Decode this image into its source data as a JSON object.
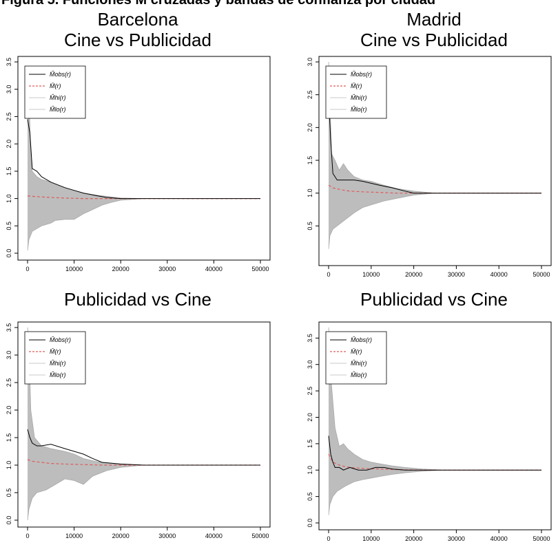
{
  "figure_caption": "Figura 5. Funciones M cruzadas y bandas de confianza por ciudad",
  "legend_labels": [
    "M̂obs(r)",
    "M̄(r)",
    "M̂hi(r)",
    "M̂lo(r)"
  ],
  "colors": {
    "observed": "#000000",
    "mean": "#e05a5a",
    "envelope": "#bdbdbd",
    "frame": "#000000"
  },
  "chart_data": [
    {
      "type": "line",
      "title_lines": [
        "Barcelona",
        "Cine vs Publicidad"
      ],
      "xlim": [
        0,
        50000
      ],
      "ylim": [
        0,
        3.5
      ],
      "xticks": [
        0,
        10000,
        20000,
        30000,
        40000,
        50000
      ],
      "yticks": [
        0.0,
        0.5,
        1.0,
        1.5,
        2.0,
        2.5,
        3.0,
        3.5
      ],
      "legend_position": "top-left",
      "series": [
        {
          "role": "observed",
          "x": [
            0,
            500,
            1000,
            2000,
            3000,
            5000,
            8000,
            10000,
            12000,
            15000,
            17000,
            20000,
            25000,
            50000
          ],
          "y": [
            2.45,
            2.2,
            1.55,
            1.5,
            1.4,
            1.3,
            1.2,
            1.15,
            1.1,
            1.05,
            1.02,
            1.0,
            1.0,
            1.0
          ]
        },
        {
          "role": "mean",
          "x": [
            0,
            1000,
            3000,
            5000,
            8000,
            12000,
            16000,
            20000,
            50000
          ],
          "y": [
            1.05,
            1.04,
            1.03,
            1.02,
            1.01,
            1.0,
            1.0,
            1.0,
            1.0
          ]
        },
        {
          "role": "hi",
          "x": [
            0,
            300,
            600,
            1000,
            2000,
            3000,
            5000,
            8000,
            10000,
            12000,
            15000,
            18000,
            20000,
            25000,
            50000
          ],
          "y": [
            3.4,
            3.0,
            2.0,
            1.5,
            1.4,
            1.35,
            1.3,
            1.2,
            1.15,
            1.1,
            1.06,
            1.03,
            1.01,
            1.0,
            1.0
          ]
        },
        {
          "role": "lo",
          "x": [
            0,
            300,
            1000,
            2000,
            3000,
            5000,
            6000,
            8000,
            10000,
            12000,
            14000,
            16000,
            18000,
            20000,
            25000,
            50000
          ],
          "y": [
            0.05,
            0.25,
            0.4,
            0.45,
            0.5,
            0.55,
            0.6,
            0.62,
            0.62,
            0.72,
            0.8,
            0.88,
            0.93,
            0.97,
            1.0,
            1.0
          ]
        }
      ]
    },
    {
      "type": "line",
      "title_lines": [
        "Madrid",
        "Cine vs Publicidad"
      ],
      "xlim": [
        0,
        50000
      ],
      "ylim": [
        0,
        3.0
      ],
      "xticks": [
        0,
        10000,
        20000,
        30000,
        40000,
        50000
      ],
      "yticks": [
        0.5,
        1.0,
        1.5,
        2.0,
        2.5,
        3.0
      ],
      "legend_position": "top-left",
      "series": [
        {
          "role": "observed",
          "x": [
            0,
            500,
            1000,
            2000,
            4000,
            6000,
            8000,
            12000,
            15000,
            18000,
            20000,
            25000,
            50000
          ],
          "y": [
            2.45,
            1.8,
            1.3,
            1.2,
            1.2,
            1.2,
            1.18,
            1.12,
            1.08,
            1.03,
            1.0,
            1.0,
            1.0
          ]
        },
        {
          "role": "mean",
          "x": [
            0,
            1000,
            3000,
            5000,
            8000,
            12000,
            16000,
            20000,
            50000
          ],
          "y": [
            1.12,
            1.08,
            1.05,
            1.03,
            1.02,
            1.01,
            1.0,
            1.0,
            1.0
          ]
        },
        {
          "role": "hi",
          "x": [
            0,
            300,
            700,
            1500,
            2500,
            3500,
            4500,
            6000,
            8000,
            10000,
            13000,
            16000,
            20000,
            25000,
            50000
          ],
          "y": [
            3.0,
            2.4,
            1.6,
            1.5,
            1.35,
            1.45,
            1.35,
            1.25,
            1.2,
            1.18,
            1.12,
            1.07,
            1.03,
            1.0,
            1.0
          ]
        },
        {
          "role": "lo",
          "x": [
            0,
            300,
            1000,
            2000,
            4000,
            6000,
            8000,
            10000,
            13000,
            16000,
            20000,
            25000,
            50000
          ],
          "y": [
            0.15,
            0.35,
            0.45,
            0.5,
            0.6,
            0.7,
            0.78,
            0.82,
            0.88,
            0.92,
            0.97,
            1.0,
            1.0
          ]
        }
      ]
    },
    {
      "type": "line",
      "title_lines": [
        "Publicidad vs Cine"
      ],
      "xlim": [
        0,
        50000
      ],
      "ylim": [
        0,
        3.5
      ],
      "xticks": [
        0,
        10000,
        20000,
        30000,
        40000,
        50000
      ],
      "yticks": [
        0.0,
        0.5,
        1.0,
        1.5,
        2.0,
        2.5,
        3.0,
        3.5
      ],
      "legend_position": "top-left",
      "series": [
        {
          "role": "observed",
          "x": [
            0,
            500,
            1000,
            2000,
            3000,
            5000,
            8000,
            10000,
            12000,
            14000,
            16000,
            20000,
            25000,
            50000
          ],
          "y": [
            1.65,
            1.5,
            1.4,
            1.35,
            1.35,
            1.38,
            1.3,
            1.25,
            1.2,
            1.12,
            1.05,
            1.02,
            1.0,
            1.0
          ]
        },
        {
          "role": "mean",
          "x": [
            0,
            1000,
            3000,
            5000,
            8000,
            12000,
            16000,
            20000,
            50000
          ],
          "y": [
            1.1,
            1.07,
            1.05,
            1.03,
            1.02,
            1.01,
            1.0,
            1.0,
            1.0
          ]
        },
        {
          "role": "hi",
          "x": [
            0,
            300,
            700,
            1500,
            3000,
            5000,
            8000,
            10000,
            12000,
            15000,
            18000,
            20000,
            25000,
            50000
          ],
          "y": [
            3.5,
            3.2,
            2.0,
            1.5,
            1.35,
            1.3,
            1.25,
            1.2,
            1.12,
            1.06,
            1.03,
            1.01,
            1.0,
            1.0
          ]
        },
        {
          "role": "lo",
          "x": [
            0,
            300,
            1000,
            2000,
            4000,
            6000,
            8000,
            10000,
            12000,
            14000,
            17000,
            20000,
            25000,
            50000
          ],
          "y": [
            0.0,
            0.2,
            0.4,
            0.5,
            0.55,
            0.65,
            0.75,
            0.72,
            0.65,
            0.8,
            0.9,
            0.96,
            1.0,
            1.0
          ]
        }
      ]
    },
    {
      "type": "line",
      "title_lines": [
        "Publicidad vs Cine"
      ],
      "xlim": [
        0,
        50000
      ],
      "ylim": [
        0,
        3.7
      ],
      "xticks": [
        0,
        10000,
        20000,
        30000,
        40000,
        50000
      ],
      "yticks": [
        0.0,
        0.5,
        1.0,
        1.5,
        2.0,
        2.5,
        3.0,
        3.5
      ],
      "legend_position": "top-left",
      "series": [
        {
          "role": "observed",
          "x": [
            0,
            500,
            1000,
            1500,
            2500,
            3500,
            5000,
            7000,
            9000,
            11000,
            13000,
            15000,
            18000,
            22000,
            50000
          ],
          "y": [
            1.65,
            1.3,
            1.15,
            1.05,
            1.05,
            1.0,
            1.05,
            1.0,
            1.0,
            1.05,
            1.05,
            1.02,
            1.0,
            1.0,
            1.0
          ]
        },
        {
          "role": "mean",
          "x": [
            0,
            1000,
            3000,
            5000,
            8000,
            12000,
            16000,
            20000,
            50000
          ],
          "y": [
            1.3,
            1.15,
            1.08,
            1.05,
            1.03,
            1.02,
            1.01,
            1.0,
            1.0
          ]
        },
        {
          "role": "hi",
          "x": [
            0,
            300,
            700,
            1500,
            2500,
            3500,
            4500,
            6000,
            8000,
            10000,
            12000,
            15000,
            18000,
            22000,
            27000,
            50000
          ],
          "y": [
            3.7,
            3.3,
            2.6,
            1.8,
            1.45,
            1.5,
            1.4,
            1.3,
            1.2,
            1.15,
            1.12,
            1.08,
            1.05,
            1.02,
            1.0,
            1.0
          ]
        },
        {
          "role": "lo",
          "x": [
            0,
            300,
            1000,
            2000,
            4000,
            6000,
            8000,
            10000,
            12000,
            15000,
            18000,
            22000,
            27000,
            50000
          ],
          "y": [
            0.15,
            0.35,
            0.5,
            0.6,
            0.7,
            0.78,
            0.82,
            0.85,
            0.88,
            0.92,
            0.95,
            0.98,
            1.0,
            1.0
          ]
        }
      ]
    }
  ]
}
